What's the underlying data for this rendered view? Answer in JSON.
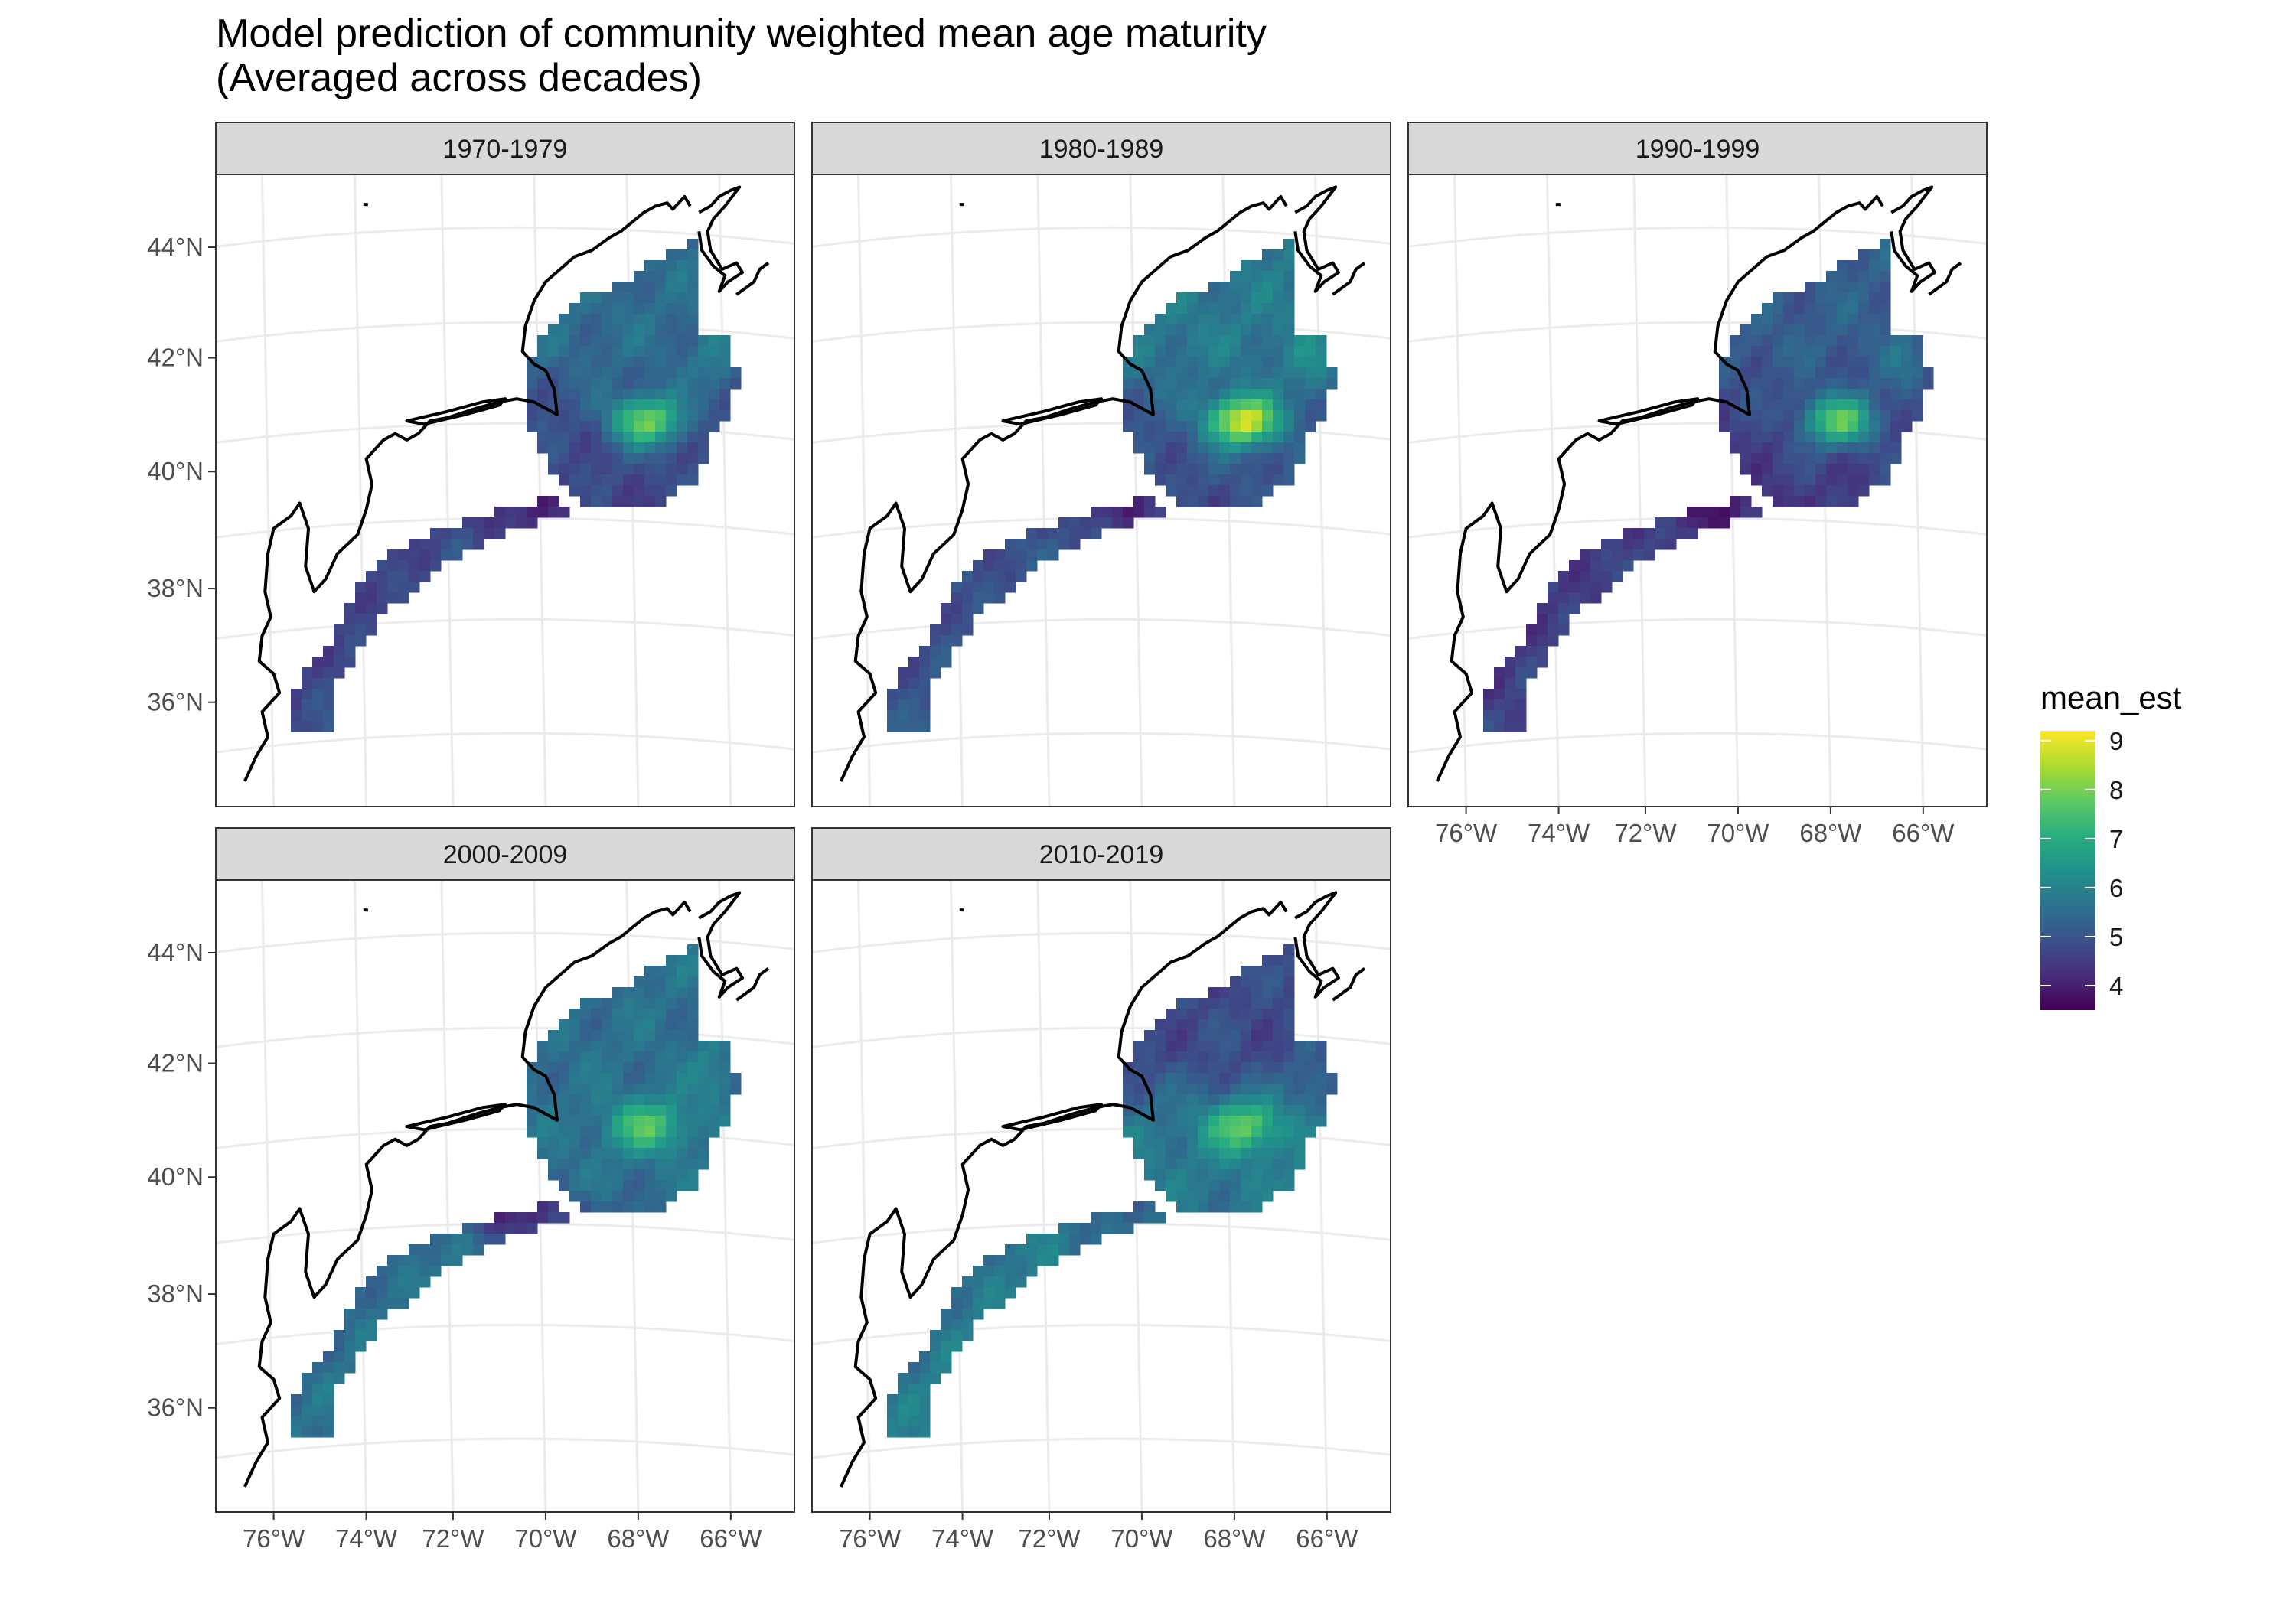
{
  "title_line1": "Model prediction of community weighted mean age maturity",
  "title_line2": "(Averaged across decades)",
  "facets": [
    {
      "label": "1970-1979",
      "hot": 7.9
    },
    {
      "label": "1980-1989",
      "hot": 8.9
    },
    {
      "label": "1990-1999",
      "hot": 7.7
    },
    {
      "label": "2000-2009",
      "hot": 7.6
    },
    {
      "label": "2010-2019",
      "hot": 7.8
    }
  ],
  "lat_ticks": [
    "44°N",
    "42°N",
    "40°N",
    "38°N",
    "36°N"
  ],
  "lon_ticks": [
    "76°W",
    "74°W",
    "72°W",
    "70°W",
    "68°W",
    "66°W"
  ],
  "legend": {
    "title": "mean_est",
    "labels": [
      "9",
      "8",
      "7",
      "6",
      "5",
      "4"
    ],
    "colors": [
      "#440154",
      "#472d7b",
      "#3b528b",
      "#2c728e",
      "#21918c",
      "#28ae80",
      "#5ec962",
      "#addc30",
      "#fde725"
    ]
  },
  "chart_data": {
    "type": "heatmap",
    "title": "Model prediction of community weighted mean age maturity (Averaged across decades)",
    "facets": [
      "1970-1979",
      "1980-1989",
      "1990-1999",
      "2000-2009",
      "2010-2019"
    ],
    "x_ticks": [
      "76°W",
      "74°W",
      "72°W",
      "70°W",
      "68°W",
      "66°W"
    ],
    "y_ticks": [
      "44°N",
      "42°N",
      "40°N",
      "38°N",
      "36°N"
    ],
    "xlim": [
      -77,
      -65
    ],
    "ylim": [
      34.5,
      45
    ],
    "color_scale": {
      "name": "mean_est",
      "palette": "viridis",
      "range": [
        3.5,
        9.2
      ],
      "ticks": [
        4,
        5,
        6,
        7,
        8,
        9
      ]
    },
    "region_estimates": {
      "1970-1979": {
        "georges_bank": 7.9,
        "gulf_of_maine": 5.5,
        "southern_new_england": 4.2,
        "mid_atlantic": 4.8
      },
      "1980-1989": {
        "georges_bank": 8.9,
        "gulf_of_maine": 5.8,
        "southern_new_england": 4.3,
        "mid_atlantic": 5.0
      },
      "1990-1999": {
        "georges_bank": 7.7,
        "gulf_of_maine": 5.2,
        "southern_new_england": 4.0,
        "mid_atlantic": 4.6
      },
      "2000-2009": {
        "georges_bank": 7.6,
        "gulf_of_maine": 5.6,
        "southern_new_england": 4.2,
        "mid_atlantic": 5.6
      },
      "2010-2019": {
        "georges_bank": 7.8,
        "gulf_of_maine": 4.8,
        "southern_new_england": 5.4,
        "mid_atlantic": 5.8
      }
    }
  }
}
